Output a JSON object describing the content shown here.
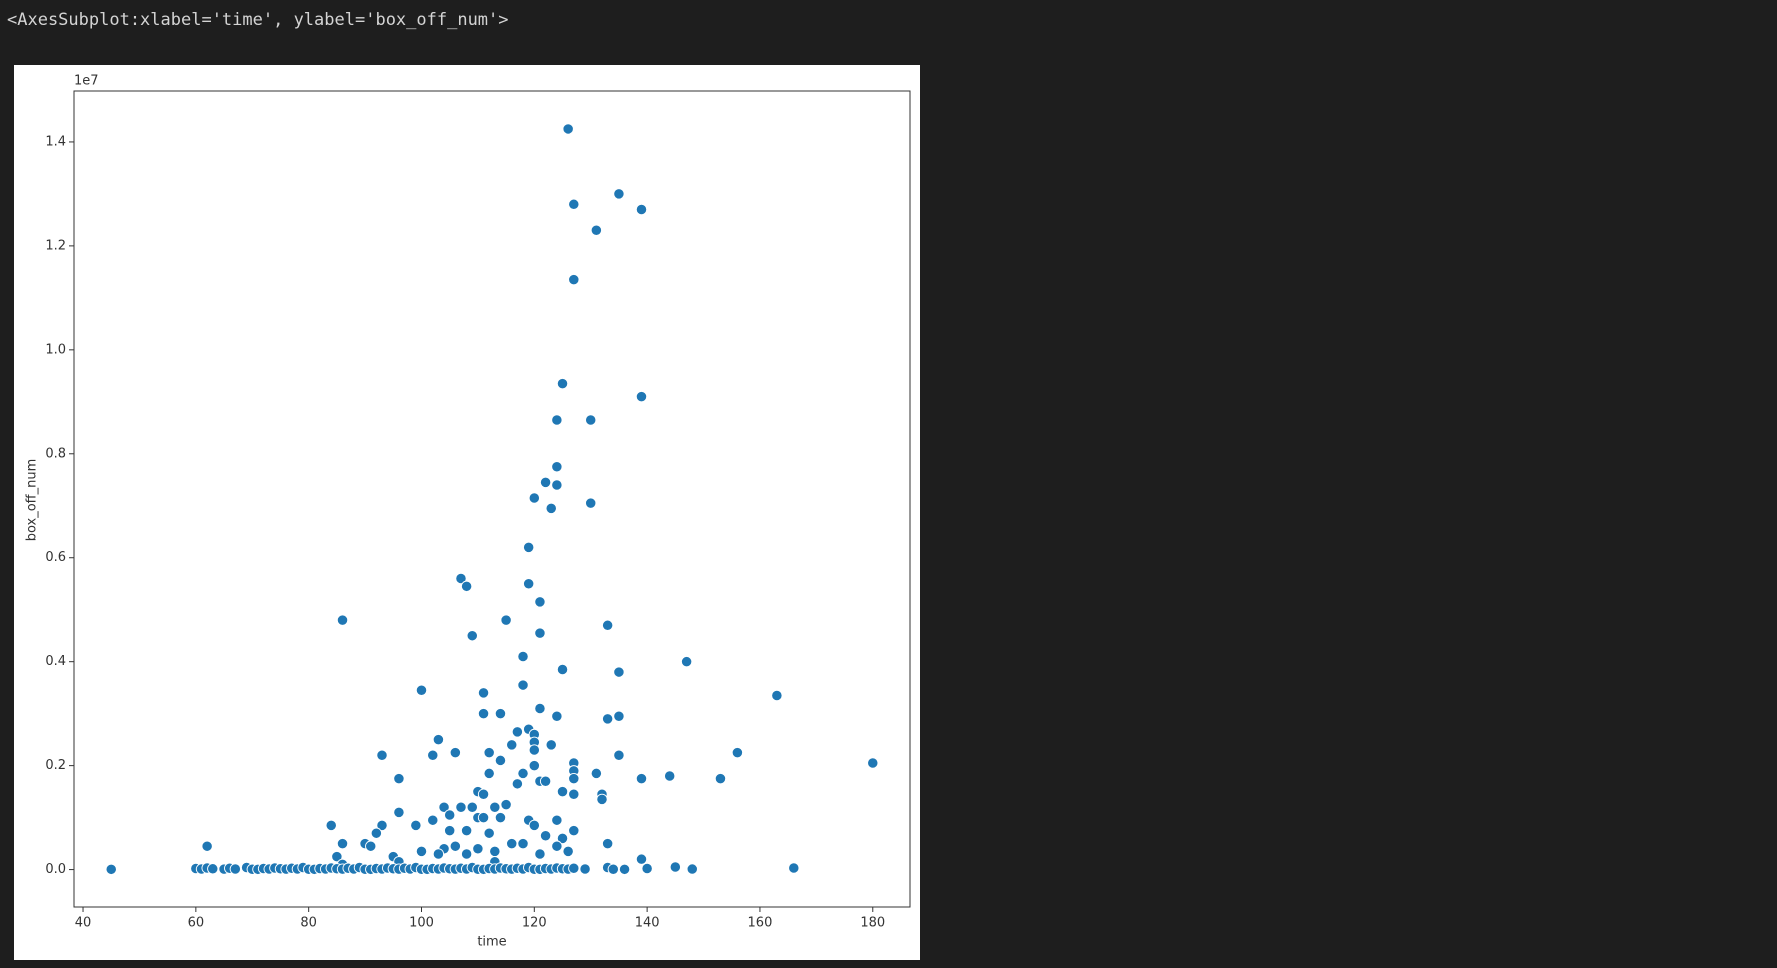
{
  "output_repr": "<AxesSubplot:xlabel='time', ylabel='box_off_num'>",
  "chart_data": {
    "type": "scatter",
    "xlabel": "time",
    "ylabel": "box_off_num",
    "y_offset_label": "1e7",
    "color": "#1f77b4",
    "grid": false,
    "xlim": [
      38.4,
      186.6
    ],
    "ylim": [
      -720000,
      14980000
    ],
    "xticks": [
      40,
      60,
      80,
      100,
      120,
      140,
      160,
      180
    ],
    "yticks": [
      {
        "value": 0,
        "label": "0.0"
      },
      {
        "value": 2000000,
        "label": "0.2"
      },
      {
        "value": 4000000,
        "label": "0.4"
      },
      {
        "value": 6000000,
        "label": "0.6"
      },
      {
        "value": 8000000,
        "label": "0.8"
      },
      {
        "value": 10000000,
        "label": "1.0"
      },
      {
        "value": 12000000,
        "label": "1.2"
      },
      {
        "value": 14000000,
        "label": "1.4"
      }
    ],
    "x": [
      126,
      127,
      135,
      139,
      131,
      127,
      125,
      139,
      124,
      130,
      124,
      122,
      124,
      120,
      130,
      123,
      119,
      107,
      108,
      119,
      121,
      86,
      115,
      133,
      121,
      109,
      118,
      147,
      125,
      135,
      118,
      100,
      111,
      163,
      121,
      111,
      114,
      124,
      133,
      135,
      117,
      119,
      120,
      103,
      120,
      116,
      123,
      120,
      93,
      102,
      106,
      112,
      114,
      135,
      156,
      180,
      127,
      120,
      127,
      112,
      118,
      131,
      127,
      96,
      139,
      144,
      153,
      121,
      122,
      117,
      110,
      111,
      125,
      127,
      132,
      132,
      115,
      104,
      107,
      109,
      113,
      96,
      105,
      119,
      124,
      84,
      93,
      99,
      102,
      110,
      111,
      114,
      120,
      127,
      105,
      92,
      108,
      112,
      122,
      125,
      90,
      91,
      86,
      62,
      133,
      104,
      106,
      116,
      118,
      124,
      100,
      110,
      113,
      126,
      85,
      95,
      103,
      108,
      121,
      139,
      145,
      86,
      96,
      113,
      45,
      60,
      61,
      62,
      63,
      65,
      66,
      67,
      69,
      70,
      71,
      72,
      73,
      74,
      75,
      76,
      77,
      78,
      79,
      80,
      81,
      82,
      83,
      84,
      85,
      86,
      87,
      88,
      89,
      90,
      91,
      92,
      93,
      94,
      95,
      96,
      97,
      98,
      99,
      100,
      101,
      102,
      103,
      104,
      105,
      106,
      107,
      108,
      109,
      110,
      111,
      112,
      113,
      114,
      115,
      116,
      117,
      118,
      119,
      120,
      121,
      122,
      123,
      124,
      125,
      126,
      127,
      129,
      133,
      134,
      136,
      140,
      148,
      166
    ],
    "values": [
      14250000,
      12800000,
      13000000,
      12700000,
      12300000,
      11350000,
      9350000,
      9100000,
      8650000,
      8650000,
      7750000,
      7450000,
      7400000,
      7150000,
      7050000,
      6950000,
      6200000,
      5600000,
      5450000,
      5500000,
      5150000,
      4800000,
      4800000,
      4700000,
      4550000,
      4500000,
      4100000,
      4000000,
      3850000,
      3800000,
      3550000,
      3450000,
      3400000,
      3350000,
      3100000,
      3000000,
      3000000,
      2950000,
      2900000,
      2950000,
      2650000,
      2700000,
      2600000,
      2500000,
      2450000,
      2400000,
      2400000,
      2300000,
      2200000,
      2200000,
      2250000,
      2250000,
      2100000,
      2200000,
      2250000,
      2050000,
      2050000,
      2000000,
      1900000,
      1850000,
      1850000,
      1850000,
      1750000,
      1750000,
      1750000,
      1800000,
      1750000,
      1700000,
      1700000,
      1650000,
      1500000,
      1450000,
      1500000,
      1450000,
      1450000,
      1350000,
      1250000,
      1200000,
      1200000,
      1200000,
      1200000,
      1100000,
      1050000,
      950000,
      950000,
      850000,
      850000,
      850000,
      950000,
      1000000,
      1000000,
      1000000,
      850000,
      750000,
      750000,
      700000,
      750000,
      700000,
      650000,
      600000,
      500000,
      450000,
      500000,
      450000,
      500000,
      400000,
      450000,
      500000,
      500000,
      450000,
      350000,
      400000,
      350000,
      350000,
      250000,
      250000,
      300000,
      300000,
      300000,
      200000,
      50000,
      100000,
      150000,
      150000,
      5000,
      20000,
      10000,
      30000,
      15000,
      8000,
      25000,
      12000,
      40000,
      6000,
      5000,
      20000,
      10000,
      30000,
      15000,
      8000,
      25000,
      12000,
      40000,
      6000,
      5000,
      20000,
      10000,
      30000,
      15000,
      8000,
      25000,
      12000,
      40000,
      6000,
      5000,
      20000,
      10000,
      30000,
      15000,
      8000,
      25000,
      12000,
      40000,
      6000,
      5000,
      20000,
      10000,
      30000,
      15000,
      8000,
      25000,
      12000,
      40000,
      6000,
      5000,
      20000,
      10000,
      30000,
      15000,
      8000,
      25000,
      12000,
      40000,
      6000,
      5000,
      20000,
      10000,
      30000,
      15000,
      8000,
      25000,
      12000,
      40000,
      6000,
      5000,
      20000,
      10000,
      30000
    ]
  }
}
